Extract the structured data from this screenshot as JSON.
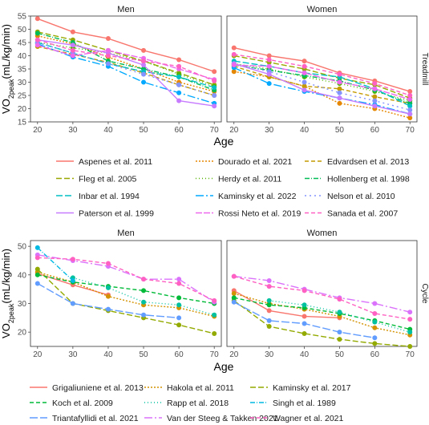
{
  "chart_data": [
    {
      "type": "line",
      "facet_row": "Treadmill",
      "facet_cols": [
        "Men",
        "Women"
      ],
      "x": [
        20,
        30,
        40,
        50,
        60,
        70
      ],
      "xlabel": "Age",
      "ylabel_main": "VO",
      "ylabel_sub": "2peak",
      "ylabel_unit": "(mL/kg/min)",
      "xlim": [
        18,
        72
      ],
      "ylim": [
        15,
        55
      ],
      "yticks": [
        15,
        20,
        25,
        30,
        35,
        40,
        45,
        50,
        55
      ],
      "xticks": [
        20,
        30,
        40,
        50,
        60,
        70
      ],
      "grid": false,
      "legend_position": "below",
      "series": [
        {
          "name": "Aspenes et al. 2011",
          "color": "#F8766D",
          "dash": "",
          "men": [
            54,
            49,
            46.5,
            42,
            38.5,
            34
          ],
          "women": [
            43,
            40,
            38,
            33.5,
            30.5,
            26.5
          ]
        },
        {
          "name": "Dourado et al. 2021",
          "color": "#E58700",
          "dash": "2,2",
          "men": [
            47.5,
            44.5,
            39.5,
            35,
            30,
            26.5
          ],
          "women": [
            34,
            32,
            28.5,
            22,
            20,
            16.5
          ]
        },
        {
          "name": "Edvardsen et al. 2013",
          "color": "#C49A00",
          "dash": "5,3",
          "men": [
            43.5,
            40.5,
            37.5,
            33.5,
            29,
            25
          ],
          "women": [
            36,
            32,
            28.5,
            27.5,
            24.5,
            22
          ]
        },
        {
          "name": "Fleg et al. 2005",
          "color": "#99A800",
          "dash": "7,3",
          "men": [
            49,
            46,
            42,
            38,
            33.5,
            29
          ],
          "women": [
            40,
            37.5,
            35,
            31.5,
            29,
            24
          ]
        },
        {
          "name": "Herdy et al. 2011",
          "color": "#53B400",
          "dash": "1,3",
          "men": [
            45,
            43,
            41,
            38,
            33,
            28.5
          ],
          "women": [
            37,
            35,
            32,
            29.5,
            26.5,
            23
          ]
        },
        {
          "name": "Hollenberg et al. 1998",
          "color": "#00BC56",
          "dash": "6,2,1,2",
          "men": [
            48.5,
            45,
            38,
            35,
            32,
            27
          ],
          "women": [
            36.5,
            34.5,
            32.5,
            30.5,
            27,
            22
          ]
        },
        {
          "name": "Inbar et al. 1994",
          "color": "#00BFC4",
          "dash": "8,3",
          "men": [
            45,
            41,
            37,
            34,
            32,
            28
          ],
          "women": [
            38,
            36,
            33.5,
            32,
            27.5,
            21
          ]
        },
        {
          "name": "Kaminsky et al. 2022",
          "color": "#00A9FF",
          "dash": "10,3,2,3",
          "men": [
            44.5,
            39.5,
            36,
            30,
            26,
            22
          ],
          "women": [
            35.5,
            29.5,
            26.5,
            24,
            21.5,
            18
          ]
        },
        {
          "name": "Nelson et al. 2010",
          "color": "#8494FF",
          "dash": "2,4",
          "men": [
            45,
            41,
            37,
            33,
            29,
            25
          ],
          "women": [
            37,
            34,
            30,
            26,
            23,
            19.5
          ]
        },
        {
          "name": "Paterson et al. 1999",
          "color": "#C77CFF",
          "dash": "",
          "men": [
            46,
            44,
            41,
            36.5,
            23,
            21
          ],
          "women": [
            37,
            33,
            27,
            24,
            21,
            18
          ]
        },
        {
          "name": "Rossi Neto et al. 2019",
          "color": "#ED68ED",
          "dash": "8,2",
          "men": [
            44,
            40,
            42,
            39,
            35,
            31
          ],
          "women": [
            36.5,
            36,
            33.5,
            30,
            27.5,
            23.5
          ]
        },
        {
          "name": "Sanada et al. 2007",
          "color": "#FF61C3",
          "dash": "5,3",
          "men": [
            46,
            42,
            40,
            38,
            36,
            30.5
          ],
          "women": [
            40.5,
            38.5,
            36,
            33,
            29.5,
            25
          ]
        }
      ]
    },
    {
      "type": "line",
      "facet_row": "Cycle",
      "facet_cols": [
        "Men",
        "Women"
      ],
      "x": [
        20,
        30,
        40,
        50,
        60,
        70
      ],
      "xlabel": "Age",
      "ylabel_main": "VO",
      "ylabel_sub": "2peak",
      "ylabel_unit": "(mL/kg/min)",
      "xlim": [
        18,
        72
      ],
      "ylim": [
        15,
        52
      ],
      "yticks": [
        20,
        30,
        40,
        50
      ],
      "xticks": [
        20,
        30,
        40,
        50,
        60,
        70
      ],
      "grid": false,
      "legend_position": "below",
      "series": [
        {
          "name": "Grigaliuniene et al. 2013",
          "color": "#F8766D",
          "dash": "",
          "men": [
            40.5,
            36.5,
            33,
            null,
            null,
            null
          ],
          "women": [
            34.5,
            27.5,
            25.5,
            25,
            null,
            null
          ]
        },
        {
          "name": "Hakola et al. 2011",
          "color": "#D39200",
          "dash": "2,2",
          "men": [
            41,
            37.5,
            32.5,
            29.5,
            28.5,
            25.5
          ],
          "women": [
            33.5,
            30,
            28,
            25.5,
            21.5,
            19
          ]
        },
        {
          "name": "Kaminsky et al. 2017",
          "color": "#93AA00",
          "dash": "7,3",
          "men": [
            42,
            30,
            27.5,
            25,
            22.5,
            19.5
          ],
          "women": [
            31,
            22,
            19.5,
            17.5,
            16,
            15
          ]
        },
        {
          "name": "Koch et al. 2009",
          "color": "#00BA38",
          "dash": "5,3",
          "men": [
            40,
            37.5,
            36,
            34.5,
            32,
            30
          ],
          "women": [
            32,
            29.5,
            28.5,
            26.5,
            24,
            21
          ]
        },
        {
          "name": "Rapp et al. 2018",
          "color": "#00C19F",
          "dash": "1,3",
          "men": [
            null,
            39,
            35.5,
            30.5,
            29.5,
            26
          ],
          "women": [
            null,
            31,
            29.5,
            27,
            23.5,
            20
          ]
        },
        {
          "name": "Singh et al. 1989",
          "color": "#00B9E3",
          "dash": "6,2,1,2",
          "men": [
            49.5,
            38,
            null,
            null,
            null,
            null
          ],
          "women": [
            null,
            null,
            null,
            null,
            null,
            null
          ]
        },
        {
          "name": "Triantafyllidi et al. 2021",
          "color": "#619CFF",
          "dash": "10,3",
          "men": [
            37,
            30,
            28,
            26,
            25,
            null
          ],
          "women": [
            30.5,
            24,
            23,
            20,
            18,
            null
          ]
        },
        {
          "name": "Van der Steeg & Takken 2021",
          "color": "#DB72FB",
          "dash": "10,3,2,3",
          "men": [
            47,
            45,
            43,
            38.5,
            38.5,
            30.5
          ],
          "women": [
            39.5,
            38,
            35,
            32,
            30,
            27
          ]
        },
        {
          "name": "Wagner et al. 2021",
          "color": "#FF61C3",
          "dash": "5,3",
          "men": [
            46,
            45.5,
            44,
            38.5,
            37,
            31
          ],
          "women": [
            39.5,
            36,
            34.5,
            31.5,
            26.5,
            24.5
          ]
        }
      ]
    }
  ]
}
